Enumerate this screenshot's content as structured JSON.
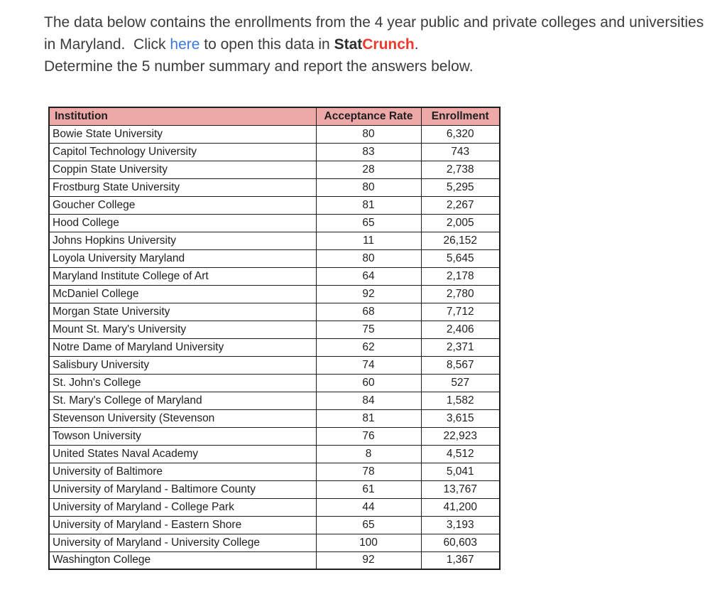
{
  "colors": {
    "header_bg": "#efa8a8",
    "table_border": "#1d1d1d",
    "link_blue": "#3b78dc",
    "brand_red": "#ee3a2d",
    "body_text": "#3c3c3c"
  },
  "intro": {
    "pre_link": "The data below contains the enrollments from the 4 year public and private colleges and universities in Maryland.  Click ",
    "link_text": "here",
    "post_link": " to open this data in ",
    "brand_stat": "Stat",
    "brand_crunch": "Crunch",
    "brand_period": ".",
    "line2": "Determine the 5 number summary and report the answers below."
  },
  "table": {
    "headers": [
      "Institution",
      "Acceptance Rate",
      "Enrollment"
    ],
    "rows": [
      {
        "institution": "Bowie State University",
        "acceptance_rate": "80",
        "enrollment": "6,320"
      },
      {
        "institution": "Capitol Technology University",
        "acceptance_rate": "83",
        "enrollment": "743"
      },
      {
        "institution": "Coppin State University",
        "acceptance_rate": "28",
        "enrollment": "2,738"
      },
      {
        "institution": "Frostburg State University",
        "acceptance_rate": "80",
        "enrollment": "5,295"
      },
      {
        "institution": "Goucher College",
        "acceptance_rate": "81",
        "enrollment": "2,267"
      },
      {
        "institution": "Hood College",
        "acceptance_rate": "65",
        "enrollment": "2,005"
      },
      {
        "institution": "Johns Hopkins University",
        "acceptance_rate": "11",
        "enrollment": "26,152"
      },
      {
        "institution": "Loyola University Maryland",
        "acceptance_rate": "80",
        "enrollment": "5,645"
      },
      {
        "institution": "Maryland Institute College of Art",
        "acceptance_rate": "64",
        "enrollment": "2,178"
      },
      {
        "institution": "McDaniel College",
        "acceptance_rate": "92",
        "enrollment": "2,780"
      },
      {
        "institution": "Morgan State University",
        "acceptance_rate": "68",
        "enrollment": "7,712"
      },
      {
        "institution": "Mount St. Mary's University",
        "acceptance_rate": "75",
        "enrollment": "2,406"
      },
      {
        "institution": "Notre Dame of Maryland University",
        "acceptance_rate": "62",
        "enrollment": "2,371"
      },
      {
        "institution": "Salisbury University",
        "acceptance_rate": "74",
        "enrollment": "8,567"
      },
      {
        "institution": "St. John's College",
        "acceptance_rate": "60",
        "enrollment": "527"
      },
      {
        "institution": "St. Mary's College of Maryland",
        "acceptance_rate": "84",
        "enrollment": "1,582"
      },
      {
        "institution": "Stevenson University (Stevenson",
        "acceptance_rate": "81",
        "enrollment": "3,615"
      },
      {
        "institution": "Towson University",
        "acceptance_rate": "76",
        "enrollment": "22,923"
      },
      {
        "institution": "United States Naval Academy",
        "acceptance_rate": "8",
        "enrollment": "4,512"
      },
      {
        "institution": "University of Baltimore",
        "acceptance_rate": "78",
        "enrollment": "5,041"
      },
      {
        "institution": "University of Maryland - Baltimore County",
        "acceptance_rate": "61",
        "enrollment": "13,767"
      },
      {
        "institution": "University of Maryland - College Park",
        "acceptance_rate": "44",
        "enrollment": "41,200"
      },
      {
        "institution": "University of Maryland - Eastern Shore",
        "acceptance_rate": "65",
        "enrollment": "3,193"
      },
      {
        "institution": "University of Maryland - University College",
        "acceptance_rate": "100",
        "enrollment": "60,603"
      },
      {
        "institution": "Washington College",
        "acceptance_rate": "92",
        "enrollment": "1,367"
      }
    ]
  }
}
